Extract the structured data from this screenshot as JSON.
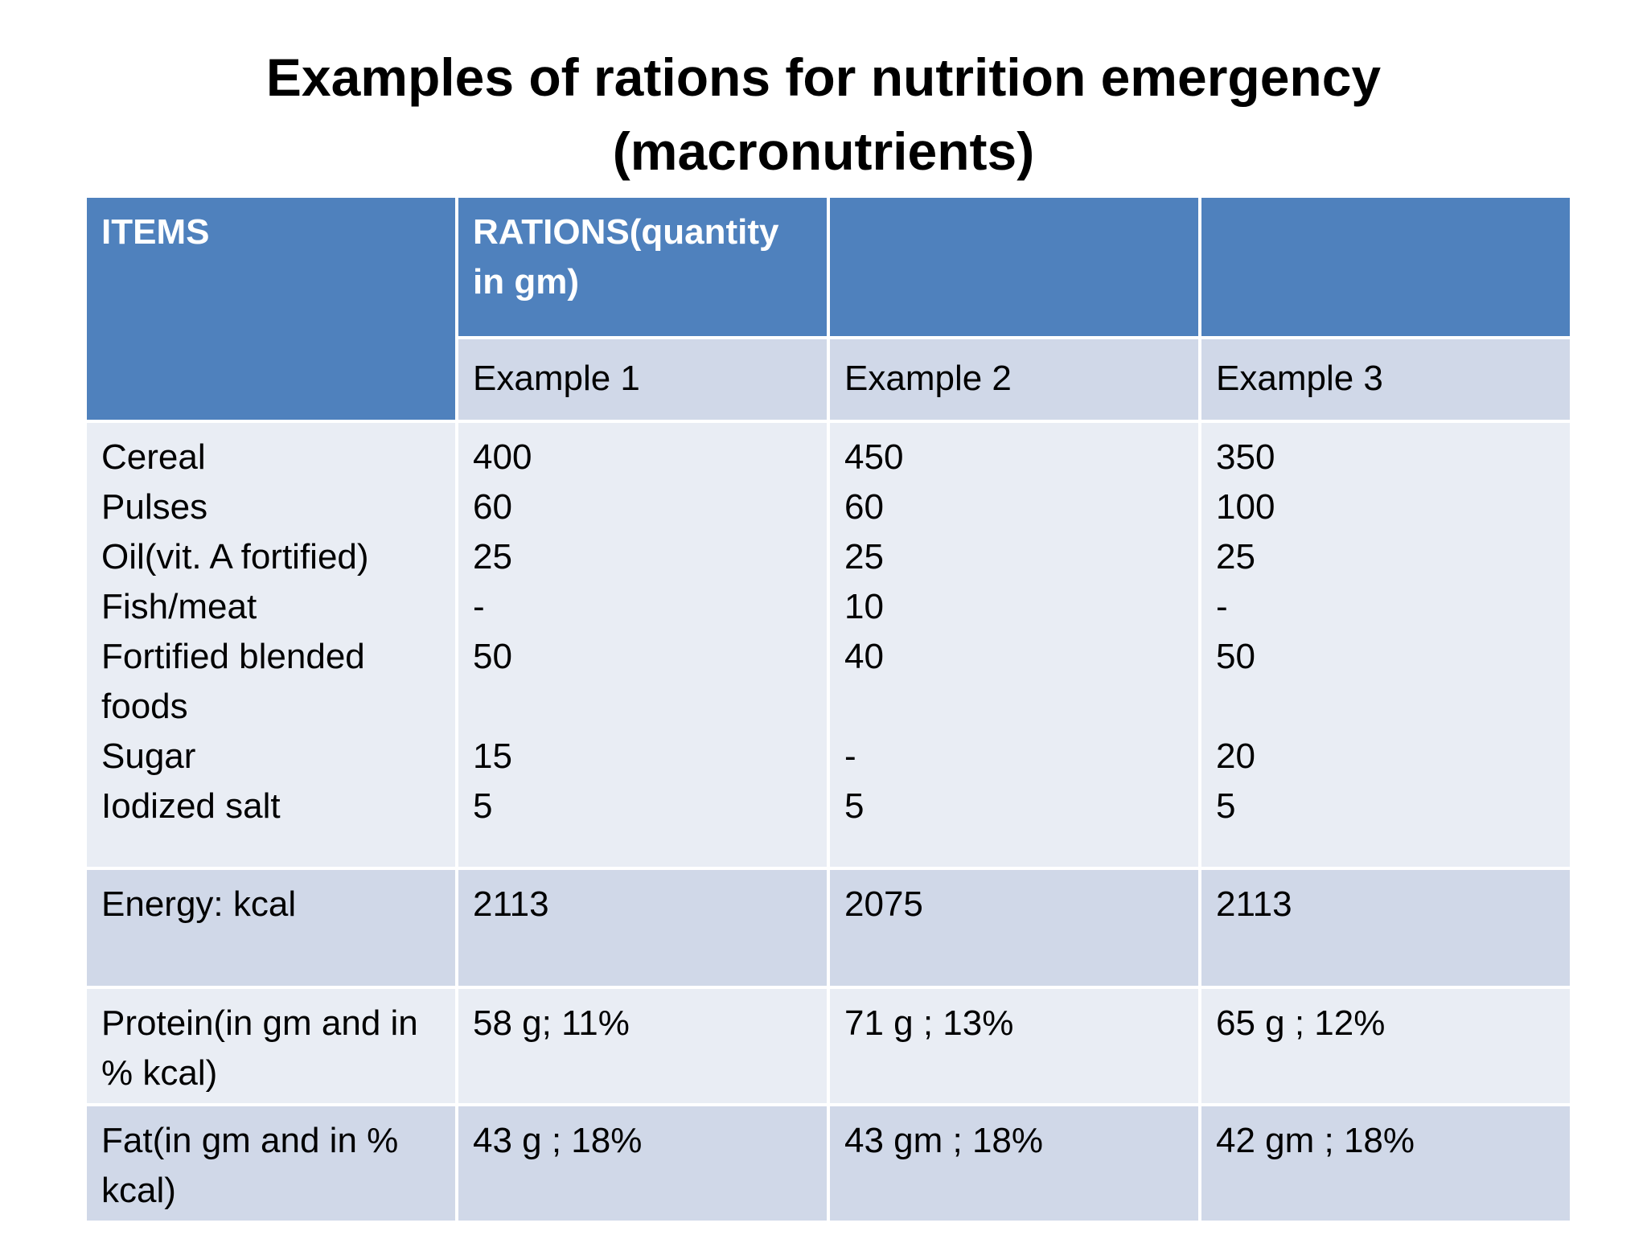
{
  "title": {
    "line1": "Examples of rations for nutrition emergency",
    "line2": "(macronutrients)"
  },
  "table": {
    "header": {
      "items": "ITEMS",
      "rations": "RATIONS(quantity in gm)",
      "col3": "",
      "col4": ""
    },
    "examples": [
      "Example 1",
      "Example 2",
      "Example 3"
    ],
    "foods": [
      {
        "item": "Cereal",
        "values": [
          "400",
          "450",
          "350"
        ]
      },
      {
        "item": "Pulses",
        "values": [
          "60",
          "60",
          "100"
        ]
      },
      {
        "item": "Oil(vit. A fortified)",
        "values": [
          "25",
          "25",
          "25"
        ]
      },
      {
        "item": "Fish/meat",
        "values": [
          "-",
          "10",
          "-"
        ]
      },
      {
        "item": "Fortified blended foods",
        "values": [
          "50",
          "40",
          "50"
        ]
      },
      {
        "item": "Sugar",
        "values": [
          "15",
          "-",
          "20"
        ]
      },
      {
        "item": "Iodized salt",
        "values": [
          "5",
          "5",
          "5"
        ]
      }
    ],
    "energy": {
      "label": "Energy: kcal",
      "values": [
        "2113",
        "2075",
        "2113"
      ]
    },
    "protein": {
      "label": "Protein(in gm and in % kcal)",
      "values": [
        "58 g; 11%",
        "71 g ; 13%",
        "65 g ; 12%"
      ]
    },
    "fat": {
      "label": "Fat(in gm and in % kcal)",
      "values": [
        "43 g ; 18%",
        "43 gm ; 18%",
        "42 gm ; 18%"
      ]
    }
  }
}
